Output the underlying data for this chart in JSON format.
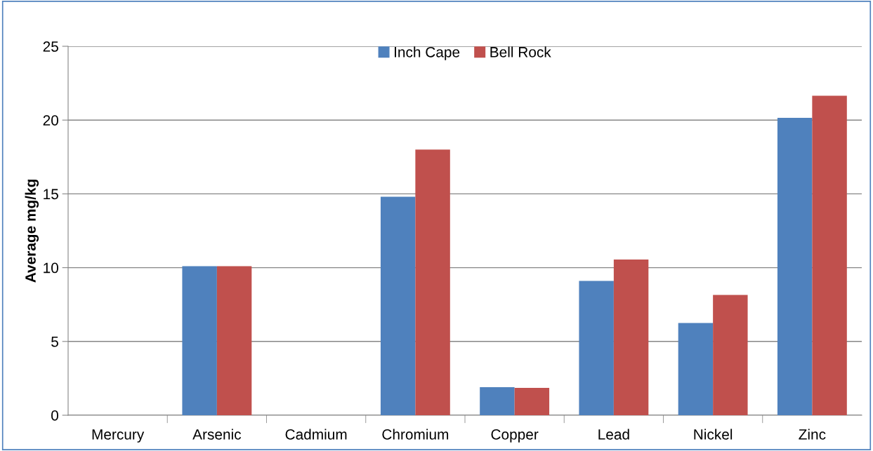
{
  "chart_data": {
    "type": "bar",
    "ylabel": "Average mg/kg",
    "categories": [
      "Mercury",
      "Arsenic",
      "Cadmium",
      "Chromium",
      "Copper",
      "Lead",
      "Nickel",
      "Zinc"
    ],
    "series": [
      {
        "name": "Inch Cape",
        "color": "#4f81bd",
        "values": [
          0,
          10.1,
          0,
          14.8,
          1.9,
          9.1,
          6.25,
          20.15
        ]
      },
      {
        "name": "Bell Rock",
        "color": "#c0504d",
        "values": [
          0,
          10.1,
          0,
          18.0,
          1.85,
          10.55,
          8.15,
          21.65
        ]
      }
    ],
    "ylim": [
      0,
      25
    ],
    "yticks": [
      0,
      5,
      10,
      15,
      20,
      25
    ],
    "grid": "y",
    "legend": "top"
  }
}
